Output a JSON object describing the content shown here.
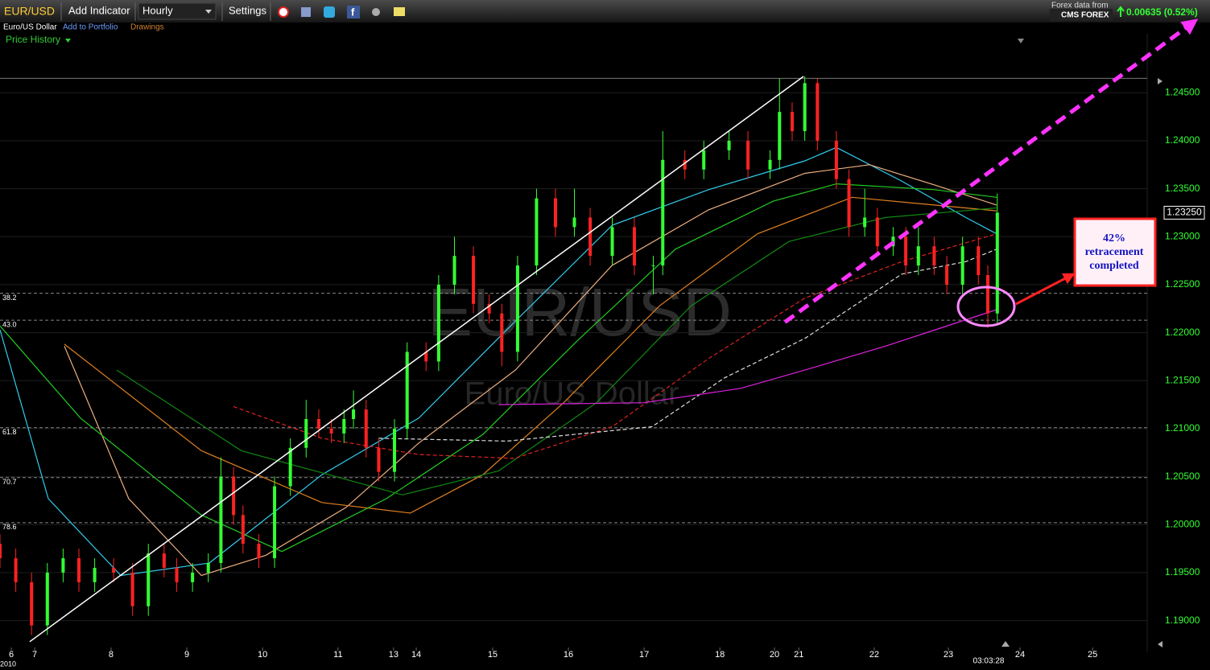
{
  "toolbar": {
    "symbol": "EUR/USD",
    "add_indicator": "Add Indicator",
    "interval": "Hourly",
    "settings": "Settings",
    "name": "Euro/US Dollar",
    "add_portfolio": "Add to Portfolio",
    "drawings": "Drawings",
    "price_history": "Price History",
    "data_from": "Forex data from",
    "provider": "CMS FOREX",
    "change": "0.00635 (0.52%)"
  },
  "chart_data": {
    "type": "candlestick",
    "watermark": "EUR/USD",
    "watermark_sub": "Euro/US Dollar",
    "x": [
      0,
      5,
      10,
      15,
      20,
      25,
      30,
      36,
      42,
      47,
      52,
      56,
      61,
      66,
      70,
      74,
      77,
      82,
      87,
      92,
      97,
      101,
      105,
      109,
      112,
      116,
      120,
      125,
      129,
      135,
      139,
      144,
      150,
      155,
      159,
      164,
      170,
      176,
      182,
      187,
      194,
      201,
      207,
      210,
      217,
      223,
      231,
      237,
      244,
      247,
      251,
      255,
      259,
      265,
      269,
      274,
      278,
      283,
      287,
      291,
      296,
      300,
      305,
      310,
      313,
      316
    ],
    "open": [
      1.198,
      1.1965,
      1.194,
      1.1895,
      1.195,
      1.1965,
      1.194,
      1.1955,
      1.195,
      1.1915,
      1.197,
      1.1955,
      1.194,
      1.195,
      1.196,
      1.205,
      1.201,
      1.198,
      1.1965,
      1.204,
      1.208,
      1.211,
      1.21,
      1.2095,
      1.211,
      1.212,
      1.208,
      1.2055,
      1.21,
      1.218,
      1.217,
      1.225,
      1.228,
      1.223,
      1.222,
      1.218,
      1.227,
      1.234,
      1.231,
      1.232,
      1.228,
      1.231,
      1.227,
      1.227,
      1.238,
      1.237,
      1.239,
      1.24,
      1.237,
      1.238,
      1.243,
      1.241,
      1.246,
      1.24,
      1.236,
      1.231,
      1.232,
      1.229,
      1.23,
      1.227,
      1.229,
      1.227,
      1.225,
      1.229,
      1.226,
      1.222
    ],
    "high": [
      1.199,
      1.1975,
      1.195,
      1.196,
      1.1975,
      1.1975,
      1.1965,
      1.1965,
      1.196,
      1.198,
      1.198,
      1.1965,
      1.196,
      1.197,
      1.207,
      1.206,
      1.202,
      1.199,
      1.205,
      1.209,
      1.213,
      1.212,
      1.211,
      1.212,
      1.214,
      1.213,
      1.209,
      1.211,
      1.219,
      1.219,
      1.226,
      1.23,
      1.229,
      1.224,
      1.223,
      1.228,
      1.235,
      1.235,
      1.235,
      1.233,
      1.232,
      1.232,
      1.228,
      1.241,
      1.239,
      1.24,
      1.241,
      1.241,
      1.239,
      1.2465,
      1.244,
      1.2467,
      1.2465,
      1.241,
      1.237,
      1.235,
      1.233,
      1.231,
      1.231,
      1.231,
      1.23,
      1.228,
      1.23,
      1.23,
      1.227,
      1.2345
    ],
    "low": [
      1.1955,
      1.193,
      1.1885,
      1.1885,
      1.194,
      1.193,
      1.193,
      1.194,
      1.1905,
      1.1905,
      1.1945,
      1.193,
      1.193,
      1.194,
      1.195,
      1.2,
      1.197,
      1.1955,
      1.1955,
      1.203,
      1.207,
      1.209,
      1.2085,
      1.2085,
      1.21,
      1.207,
      1.2045,
      1.2045,
      1.209,
      1.216,
      1.216,
      1.224,
      1.222,
      1.221,
      1.2165,
      1.217,
      1.226,
      1.23,
      1.23,
      1.227,
      1.227,
      1.226,
      1.224,
      1.226,
      1.236,
      1.236,
      1.238,
      1.236,
      1.236,
      1.237,
      1.24,
      1.24,
      1.239,
      1.235,
      1.23,
      1.23,
      1.228,
      1.228,
      1.226,
      1.226,
      1.226,
      1.224,
      1.224,
      1.225,
      1.2205,
      1.221
    ],
    "close": [
      1.1965,
      1.194,
      1.1895,
      1.195,
      1.1965,
      1.194,
      1.1955,
      1.195,
      1.1915,
      1.197,
      1.1955,
      1.194,
      1.195,
      1.196,
      1.205,
      1.201,
      1.198,
      1.1965,
      1.204,
      1.208,
      1.211,
      1.21,
      1.2095,
      1.211,
      1.212,
      1.208,
      1.2055,
      1.21,
      1.218,
      1.217,
      1.225,
      1.228,
      1.223,
      1.222,
      1.218,
      1.227,
      1.234,
      1.231,
      1.232,
      1.228,
      1.231,
      1.227,
      1.227,
      1.238,
      1.237,
      1.239,
      1.24,
      1.237,
      1.238,
      1.243,
      1.241,
      1.246,
      1.24,
      1.236,
      1.231,
      1.232,
      1.229,
      1.23,
      1.227,
      1.229,
      1.227,
      1.225,
      1.229,
      1.226,
      1.222,
      1.2325
    ],
    "up_color": "#33ff33",
    "down_color": "#ff2222",
    "xlim": [
      0,
      363.5
    ],
    "xticks": [
      {
        "value": 3.6,
        "label": "6"
      },
      {
        "value": 11,
        "label": "7"
      },
      {
        "value": 35.2,
        "label": "8"
      },
      {
        "value": 59.2,
        "label": "9"
      },
      {
        "value": 83.2,
        "label": "10"
      },
      {
        "value": 107.1,
        "label": "11"
      },
      {
        "value": 124.7,
        "label": "13"
      },
      {
        "value": 131.9,
        "label": "14"
      },
      {
        "value": 156.1,
        "label": "15"
      },
      {
        "value": 180.1,
        "label": "16"
      },
      {
        "value": 204.1,
        "label": "17"
      },
      {
        "value": 228.1,
        "label": "18"
      },
      {
        "value": 245.4,
        "label": "20"
      },
      {
        "value": 253.1,
        "label": "21"
      },
      {
        "value": 277,
        "label": "22"
      },
      {
        "value": 300.5,
        "label": "23"
      },
      {
        "value": 323.2,
        "label": "24"
      },
      {
        "value": 346.2,
        "label": "25"
      }
    ],
    "year_label": "2010",
    "ylim": [
      1.1872,
      1.2498
    ],
    "yticks": [
      {
        "value": 1.19,
        "label": "1.19000"
      },
      {
        "value": 1.195,
        "label": "1.19500"
      },
      {
        "value": 1.2,
        "label": "1.20000"
      },
      {
        "value": 1.205,
        "label": "1.20500"
      },
      {
        "value": 1.21,
        "label": "1.21000"
      },
      {
        "value": 1.215,
        "label": "1.21500"
      },
      {
        "value": 1.22,
        "label": "1.22000"
      },
      {
        "value": 1.225,
        "label": "1.22500"
      },
      {
        "value": 1.23,
        "label": "1.23000"
      },
      {
        "value": 1.235,
        "label": "1.23500"
      },
      {
        "value": 1.24,
        "label": "1.24000"
      },
      {
        "value": 1.245,
        "label": "1.24500"
      }
    ],
    "grid": true,
    "last_price": 1.2325,
    "last_price_label": "1.23250",
    "time_label": "03:03:28",
    "level_line": 1.2465,
    "fib_levels": [
      {
        "label": "38.2",
        "value": 1.2241
      },
      {
        "label": "43.0",
        "value": 1.2213
      },
      {
        "label": "61.8",
        "value": 1.2101
      },
      {
        "label": "70.7",
        "value": 1.2049
      },
      {
        "label": "78.6",
        "value": 1.2002
      }
    ],
    "indicators": [
      {
        "color": "#33ccee",
        "dash": false,
        "x": [
          0,
          15.3,
          38.3,
          66.3,
          102,
          132.7,
          163,
          194,
          224.5,
          255,
          265,
          285.7,
          306,
          315.8
        ],
        "values": [
          1.2203,
          1.2027,
          1.1947,
          1.196,
          1.2052,
          1.2111,
          1.2211,
          1.2312,
          1.2349,
          1.2379,
          1.2393,
          1.2358,
          1.232,
          1.2303
        ]
      },
      {
        "color": "#f0b080",
        "dash": false,
        "x": [
          20.4,
          40.8,
          63.8,
          84.2,
          109.7,
          132.7,
          163.3,
          193.9,
          224.5,
          255,
          275.5,
          296,
          315.8
        ],
        "values": [
          1.2186,
          1.2027,
          1.1947,
          1.1968,
          1.2018,
          1.2085,
          1.2161,
          1.227,
          1.2328,
          1.2366,
          1.2375,
          1.2354,
          1.2333
        ]
      },
      {
        "color": "#e08020",
        "dash": false,
        "x": [
          20.4,
          63.8,
          102,
          130,
          153,
          178.6,
          209,
          240,
          270,
          296,
          315.8
        ],
        "values": [
          1.2188,
          1.2077,
          1.2023,
          1.2012,
          1.2052,
          1.2127,
          1.2228,
          1.2303,
          1.2341,
          1.2333,
          1.2327
        ]
      },
      {
        "color": "#22cc22",
        "dash": false,
        "x": [
          0,
          25.5,
          63.8,
          89.3,
          122.4,
          153,
          183.7,
          214,
          245,
          265,
          296,
          315.8
        ],
        "values": [
          1.2207,
          1.2111,
          1.201,
          1.1972,
          1.2027,
          1.2094,
          1.2194,
          1.2287,
          1.2337,
          1.2355,
          1.2349,
          1.2341
        ]
      },
      {
        "color": "#118811",
        "dash": false,
        "x": [
          37,
          76.5,
          127.5,
          158,
          189,
          219,
          250,
          280.6,
          315.8
        ],
        "values": [
          1.2161,
          1.2077,
          1.2031,
          1.2056,
          1.2127,
          1.2228,
          1.2295,
          1.232,
          1.233
        ]
      },
      {
        "color": "#dd2222",
        "dash": true,
        "x": [
          74,
          102,
          132.7,
          163,
          194,
          224.5,
          255,
          285.7,
          315.8
        ],
        "values": [
          1.2123,
          1.209,
          1.2073,
          1.2069,
          1.2102,
          1.2173,
          1.2236,
          1.2274,
          1.2303
        ]
      },
      {
        "color": "#dddddd",
        "dash": true,
        "x": [
          120,
          160.7,
          206.6,
          229.6,
          255,
          285.7,
          306,
          315.8
        ],
        "values": [
          1.209,
          1.2087,
          1.2102,
          1.2153,
          1.2194,
          1.2261,
          1.2274,
          1.2287
        ]
      },
      {
        "color": "#dd22dd",
        "dash": false,
        "x": [
          158,
          204,
          234.7,
          255,
          280.6,
          315.8
        ],
        "values": [
          1.2125,
          1.2127,
          1.2142,
          1.2161,
          1.2186,
          1.2224
        ]
      }
    ],
    "trendlines": [
      {
        "color": "#ffffff",
        "dash": false,
        "x": [
          9.4,
          254.6
        ],
        "values": [
          1.1878,
          1.2467
        ]
      },
      {
        "color": "#ff33ff",
        "dash": true,
        "x": [
          248.7,
          378.8
        ],
        "values": [
          1.2211,
          1.2525
        ]
      }
    ],
    "annotation": [
      "42%",
      "retracement",
      "completed"
    ]
  }
}
